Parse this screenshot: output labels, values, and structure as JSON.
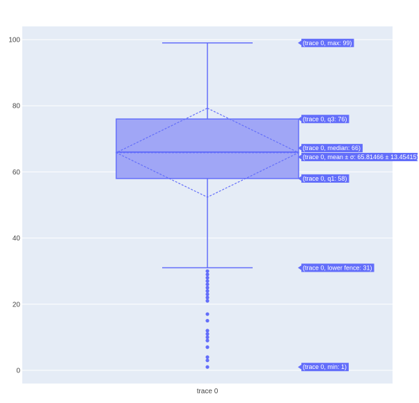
{
  "chart_data": {
    "type": "box",
    "trace": "trace 0",
    "categories": [
      "trace 0"
    ],
    "ylim": [
      -4,
      104
    ],
    "yticks": [
      0,
      20,
      40,
      60,
      80,
      100
    ],
    "grid": true,
    "stats": {
      "max": 99,
      "q3": 76,
      "median": 66,
      "mean": 65.81466,
      "sd": 13.45415,
      "q1": 58,
      "lower_fence": 31,
      "min": 1
    },
    "outliers": [
      30,
      29,
      28,
      27,
      26,
      25,
      24,
      23,
      22,
      21,
      17,
      15,
      12,
      11,
      10,
      9,
      7,
      4,
      3,
      1
    ],
    "hover_labels": [
      {
        "text": "(trace 0, max: 99)",
        "y": 99
      },
      {
        "text": "(trace 0, q3: 76)",
        "y": 76
      },
      {
        "text": "(trace 0, median: 66)",
        "y": 67.2
      },
      {
        "text": "(trace 0, mean ± σ: 65.81466 ± 13.45415)",
        "y": 64.5
      },
      {
        "text": "(trace 0, q1: 58)",
        "y": 58
      },
      {
        "text": "(trace 0, lower fence: 31)",
        "y": 31
      },
      {
        "text": "(trace 0, min: 1)",
        "y": 1
      }
    ],
    "colors": {
      "line": "#636efa",
      "fill": "#a0a6f6",
      "plot_bg": "#e5ecf6",
      "grid": "#ffffff",
      "label_bg": "#636efa",
      "label_text": "#ffffff"
    }
  }
}
